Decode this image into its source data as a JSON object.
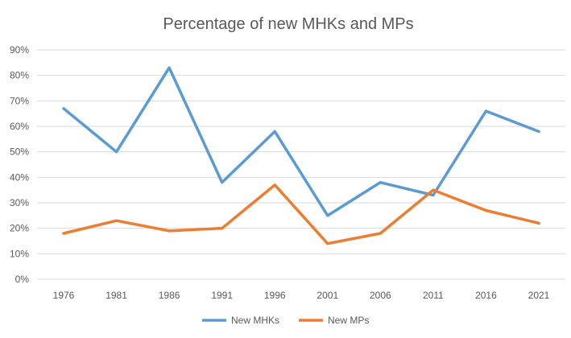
{
  "chart_data": {
    "type": "line",
    "title": "Percentage of new MHKs and MPs",
    "xlabel": "",
    "ylabel": "",
    "categories": [
      "1976",
      "1981",
      "1986",
      "1991",
      "1996",
      "2001",
      "2006",
      "2011",
      "2016",
      "2021"
    ],
    "y_ticks": [
      "0%",
      "10%",
      "20%",
      "30%",
      "40%",
      "50%",
      "60%",
      "70%",
      "80%",
      "90%"
    ],
    "ylim": [
      0,
      90
    ],
    "grid": true,
    "legend_position": "bottom",
    "series": [
      {
        "name": "New MHKs",
        "color": "#5B9BD5",
        "values": [
          67,
          50,
          83,
          38,
          58,
          25,
          38,
          33,
          66,
          58
        ]
      },
      {
        "name": "New MPs",
        "color": "#ED7D31",
        "values": [
          18,
          23,
          19,
          20,
          37,
          14,
          18,
          35,
          27,
          22
        ]
      }
    ]
  }
}
